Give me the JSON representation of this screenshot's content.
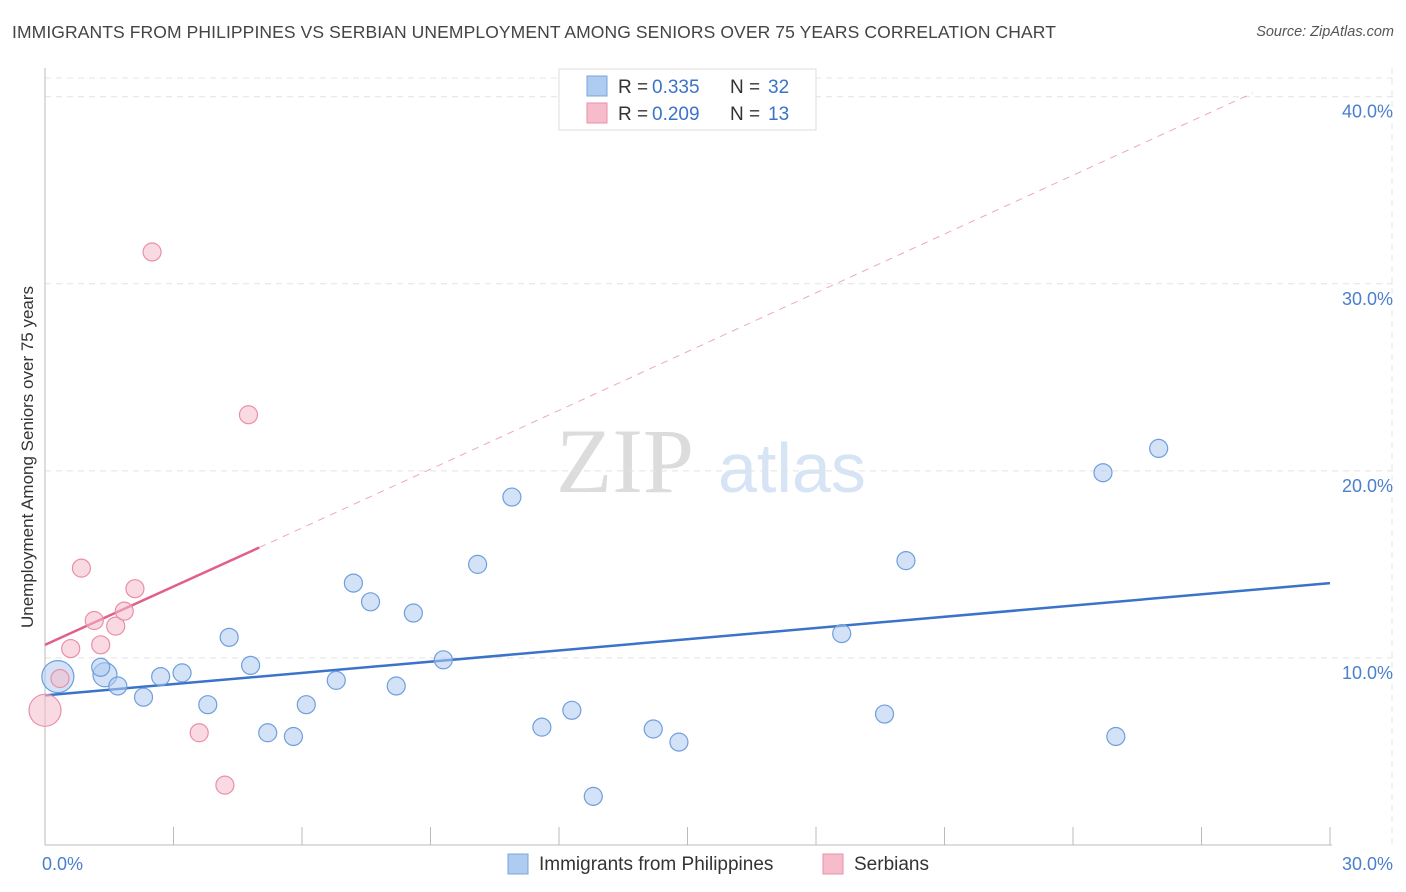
{
  "header": {
    "title": "IMMIGRANTS FROM PHILIPPINES VS SERBIAN UNEMPLOYMENT AMONG SENIORS OVER 75 YEARS CORRELATION CHART",
    "source": "Source: ZipAtlas.com"
  },
  "watermark": {
    "zip": "ZIP",
    "atlas": "atlas"
  },
  "legend": {
    "rows": [
      {
        "r_label": "R =",
        "r_value": "0.335",
        "n_label": "N =",
        "n_value": "32",
        "color": "#aecbf0",
        "stroke": "#7aa6dc"
      },
      {
        "r_label": "R =",
        "r_value": "0.209",
        "n_label": "N =",
        "n_value": "13",
        "color": "#f6bccb",
        "stroke": "#e98fa8"
      }
    ]
  },
  "bottom_legend": {
    "items": [
      {
        "label": "Immigrants from Philippines",
        "color": "#aecbf0",
        "stroke": "#7aa6dc"
      },
      {
        "label": "Serbians",
        "color": "#f6bccb",
        "stroke": "#e98fa8"
      }
    ]
  },
  "chart_data": {
    "type": "scatter",
    "title": "IMMIGRANTS FROM PHILIPPINES VS SERBIAN UNEMPLOYMENT AMONG SENIORS OVER 75 YEARS CORRELATION CHART",
    "xlabel": "",
    "ylabel": "Unemployment Among Seniors over 75 years",
    "xlim": [
      0,
      30
    ],
    "ylim": [
      0,
      41
    ],
    "x_tick_labels": [
      {
        "value": 0,
        "label": "0.0%"
      },
      {
        "value": 30,
        "label": "30.0%"
      }
    ],
    "y_tick_labels": [
      {
        "value": 10,
        "label": "10.0%"
      },
      {
        "value": 20,
        "label": "20.0%"
      },
      {
        "value": 30,
        "label": "30.0%"
      },
      {
        "value": 40,
        "label": "40.0%"
      }
    ],
    "series": [
      {
        "name": "Immigrants from Philippines",
        "color": "#aecbf0",
        "stroke": "#6f9fdb",
        "trend_color": "#3a73c9",
        "trend": {
          "x0": 0,
          "y0": 8.0,
          "x1": 30,
          "y1": 14.0,
          "dashed_to": null
        },
        "points": [
          {
            "x": 0.3,
            "y": 9.0,
            "size": 16
          },
          {
            "x": 1.4,
            "y": 9.1,
            "size": 12
          },
          {
            "x": 1.3,
            "y": 9.5,
            "size": 9
          },
          {
            "x": 1.7,
            "y": 8.5,
            "size": 9
          },
          {
            "x": 2.3,
            "y": 7.9,
            "size": 9
          },
          {
            "x": 2.7,
            "y": 9.0,
            "size": 9
          },
          {
            "x": 3.2,
            "y": 9.2,
            "size": 9
          },
          {
            "x": 3.8,
            "y": 7.5,
            "size": 9
          },
          {
            "x": 4.3,
            "y": 11.1,
            "size": 9
          },
          {
            "x": 4.8,
            "y": 9.6,
            "size": 9
          },
          {
            "x": 5.2,
            "y": 6.0,
            "size": 9
          },
          {
            "x": 5.8,
            "y": 5.8,
            "size": 9
          },
          {
            "x": 6.1,
            "y": 7.5,
            "size": 9
          },
          {
            "x": 6.8,
            "y": 8.8,
            "size": 9
          },
          {
            "x": 7.2,
            "y": 14.0,
            "size": 9
          },
          {
            "x": 7.6,
            "y": 13.0,
            "size": 9
          },
          {
            "x": 8.2,
            "y": 8.5,
            "size": 9
          },
          {
            "x": 8.6,
            "y": 12.4,
            "size": 9
          },
          {
            "x": 9.3,
            "y": 9.9,
            "size": 9
          },
          {
            "x": 10.1,
            "y": 15.0,
            "size": 9
          },
          {
            "x": 10.9,
            "y": 18.6,
            "size": 9
          },
          {
            "x": 11.6,
            "y": 6.3,
            "size": 9
          },
          {
            "x": 12.3,
            "y": 7.2,
            "size": 9
          },
          {
            "x": 12.8,
            "y": 2.6,
            "size": 9
          },
          {
            "x": 14.2,
            "y": 6.2,
            "size": 9
          },
          {
            "x": 14.8,
            "y": 5.5,
            "size": 9
          },
          {
            "x": 18.6,
            "y": 11.3,
            "size": 9
          },
          {
            "x": 19.6,
            "y": 7.0,
            "size": 9
          },
          {
            "x": 20.1,
            "y": 15.2,
            "size": 9
          },
          {
            "x": 24.7,
            "y": 19.9,
            "size": 9
          },
          {
            "x": 25.0,
            "y": 5.8,
            "size": 9
          },
          {
            "x": 26.0,
            "y": 21.2,
            "size": 9
          }
        ]
      },
      {
        "name": "Serbians",
        "color": "#f6bccb",
        "stroke": "#e98fa8",
        "trend_color": "#e0608a",
        "trend": {
          "x0": 0,
          "y0": 10.7,
          "x1": 5.0,
          "y1": 15.9,
          "dashed_to": {
            "x": 28.2,
            "y": 40.2
          }
        },
        "points": [
          {
            "x": 0.0,
            "y": 7.2,
            "size": 16
          },
          {
            "x": 0.35,
            "y": 8.9,
            "size": 9
          },
          {
            "x": 0.6,
            "y": 10.5,
            "size": 9
          },
          {
            "x": 0.85,
            "y": 14.8,
            "size": 9
          },
          {
            "x": 1.15,
            "y": 12.0,
            "size": 9
          },
          {
            "x": 1.3,
            "y": 10.7,
            "size": 9
          },
          {
            "x": 1.65,
            "y": 11.7,
            "size": 9
          },
          {
            "x": 1.85,
            "y": 12.5,
            "size": 9
          },
          {
            "x": 2.1,
            "y": 13.7,
            "size": 9
          },
          {
            "x": 2.5,
            "y": 31.7,
            "size": 9
          },
          {
            "x": 3.6,
            "y": 6.0,
            "size": 9
          },
          {
            "x": 4.2,
            "y": 3.2,
            "size": 9
          },
          {
            "x": 4.75,
            "y": 23.0,
            "size": 9
          }
        ]
      }
    ],
    "grid": true,
    "legend_position": "top-center"
  }
}
